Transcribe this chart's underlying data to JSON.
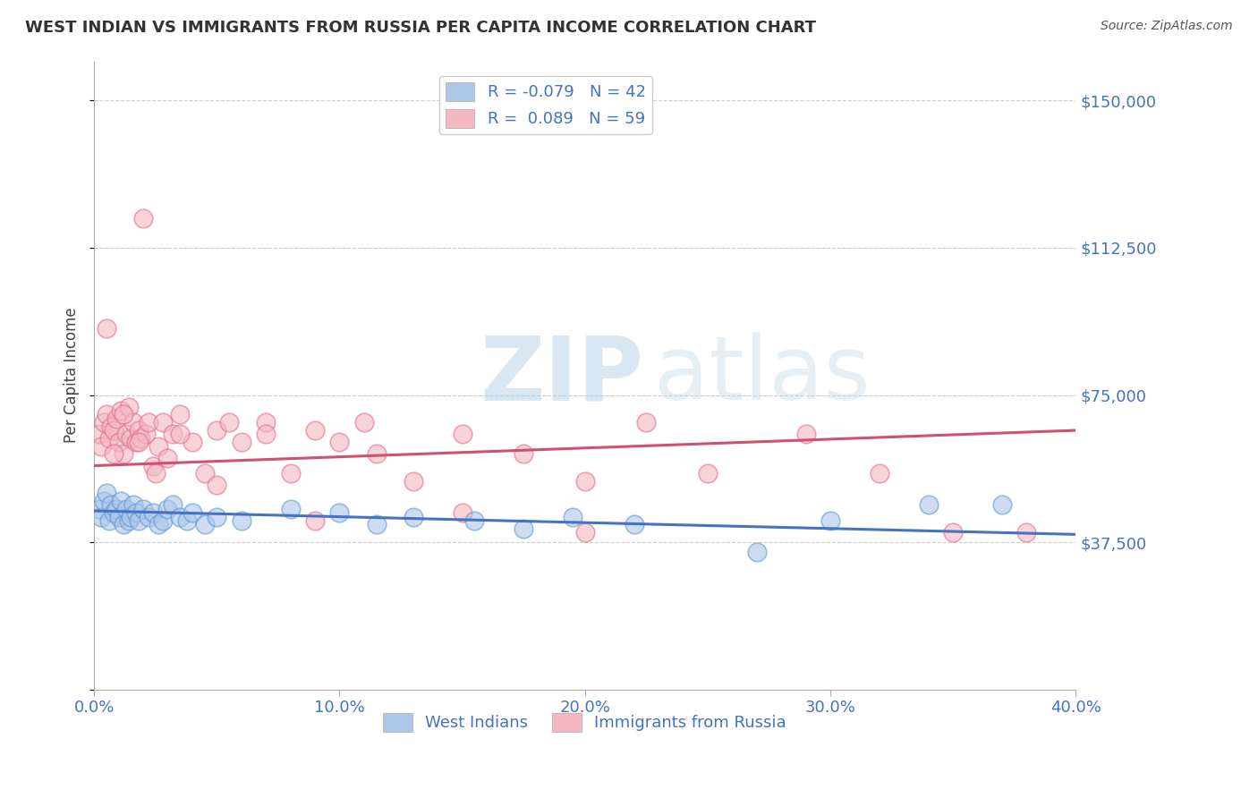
{
  "title": "WEST INDIAN VS IMMIGRANTS FROM RUSSIA PER CAPITA INCOME CORRELATION CHART",
  "source_text": "Source: ZipAtlas.com",
  "ylabel": "Per Capita Income",
  "xlim": [
    0.0,
    0.4
  ],
  "ylim": [
    0,
    160000
  ],
  "yticks": [
    0,
    37500,
    75000,
    112500,
    150000
  ],
  "ytick_labels": [
    "",
    "$37,500",
    "$75,000",
    "$112,500",
    "$150,000"
  ],
  "xticks": [
    0.0,
    0.1,
    0.2,
    0.3,
    0.4
  ],
  "xtick_labels": [
    "0.0%",
    "10.0%",
    "20.0%",
    "30.0%",
    "40.0%"
  ],
  "legend_entries": [
    {
      "label": "R = -0.079   N = 42",
      "color": "#aec6e8"
    },
    {
      "label": "R =  0.089   N = 59",
      "color": "#f4b8c1"
    }
  ],
  "series1_label": "West Indians",
  "series2_label": "Immigrants from Russia",
  "series1_color": "#aec6e8",
  "series2_color": "#f4b8c1",
  "series1_edge_color": "#5b9bd5",
  "series2_edge_color": "#e07090",
  "series1_line_color": "#4472c4",
  "series2_line_color": "#d05070",
  "watermark_color": "#cce0f0",
  "title_color": "#333333",
  "axis_label_color": "#4472c4",
  "background_color": "#ffffff",
  "grid_color": "#cccccc",
  "west_indians_x": [
    0.002,
    0.003,
    0.004,
    0.005,
    0.006,
    0.007,
    0.008,
    0.009,
    0.01,
    0.011,
    0.012,
    0.013,
    0.014,
    0.015,
    0.016,
    0.017,
    0.018,
    0.02,
    0.022,
    0.024,
    0.026,
    0.028,
    0.03,
    0.032,
    0.035,
    0.038,
    0.04,
    0.045,
    0.05,
    0.06,
    0.08,
    0.1,
    0.115,
    0.13,
    0.155,
    0.175,
    0.195,
    0.22,
    0.27,
    0.3,
    0.34,
    0.37
  ],
  "west_indians_y": [
    46000,
    44000,
    48000,
    50000,
    43000,
    47000,
    45000,
    46000,
    44000,
    48000,
    42000,
    46000,
    43000,
    44000,
    47000,
    45000,
    43000,
    46000,
    44000,
    45000,
    42000,
    43000,
    46000,
    47000,
    44000,
    43000,
    45000,
    42000,
    44000,
    43000,
    46000,
    45000,
    42000,
    44000,
    43000,
    41000,
    44000,
    42000,
    35000,
    43000,
    47000,
    47000
  ],
  "russia_x": [
    0.002,
    0.003,
    0.004,
    0.005,
    0.006,
    0.007,
    0.008,
    0.009,
    0.01,
    0.011,
    0.012,
    0.013,
    0.014,
    0.015,
    0.016,
    0.017,
    0.018,
    0.019,
    0.02,
    0.021,
    0.022,
    0.024,
    0.026,
    0.028,
    0.03,
    0.032,
    0.035,
    0.04,
    0.045,
    0.05,
    0.055,
    0.06,
    0.07,
    0.08,
    0.09,
    0.1,
    0.11,
    0.13,
    0.15,
    0.175,
    0.2,
    0.225,
    0.25,
    0.29,
    0.32,
    0.35,
    0.38,
    0.005,
    0.008,
    0.012,
    0.018,
    0.025,
    0.035,
    0.05,
    0.07,
    0.09,
    0.115,
    0.15,
    0.2
  ],
  "russia_y": [
    65000,
    62000,
    68000,
    70000,
    64000,
    67000,
    66000,
    69000,
    63000,
    71000,
    60000,
    65000,
    72000,
    64000,
    68000,
    63000,
    66000,
    64000,
    120000,
    65000,
    68000,
    57000,
    62000,
    68000,
    59000,
    65000,
    70000,
    63000,
    55000,
    66000,
    68000,
    63000,
    68000,
    55000,
    66000,
    63000,
    68000,
    53000,
    65000,
    60000,
    53000,
    68000,
    55000,
    65000,
    55000,
    40000,
    40000,
    92000,
    60000,
    70000,
    63000,
    55000,
    65000,
    52000,
    65000,
    43000,
    60000,
    45000,
    40000
  ],
  "west_line_x0": 0.0,
  "west_line_x1": 0.4,
  "west_line_y0": 45500,
  "west_line_y1": 39500,
  "russia_line_x0": 0.0,
  "russia_line_x1": 0.4,
  "russia_line_y0": 57000,
  "russia_line_y1": 66000
}
